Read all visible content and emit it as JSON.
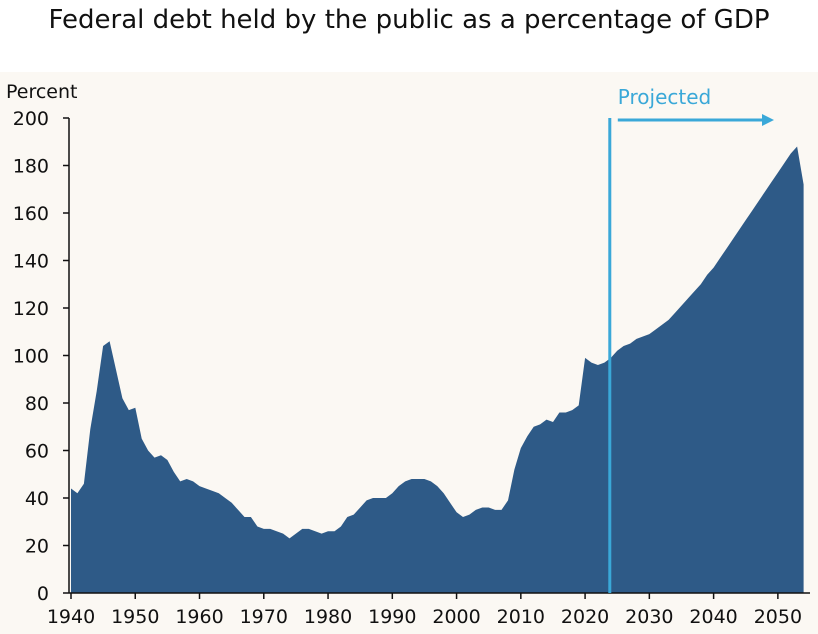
{
  "chart_data": {
    "type": "area",
    "title": "Federal debt held by the public as a percentage of GDP",
    "ylabel": "Percent",
    "xlabel": "",
    "xlim": [
      1940,
      2055
    ],
    "ylim": [
      0,
      200
    ],
    "x_ticks": [
      1940,
      1950,
      1960,
      1970,
      1980,
      1990,
      2000,
      2010,
      2020,
      2030,
      2040,
      2050
    ],
    "y_ticks": [
      0,
      20,
      40,
      60,
      80,
      100,
      120,
      140,
      160,
      180,
      200
    ],
    "grid": false,
    "fill_color": "#2e5a87",
    "annotation": {
      "label": "Projected",
      "x": 2024,
      "color": "#3aa8d8"
    },
    "series": [
      {
        "x": [
          1940,
          1941,
          1942,
          1943,
          1944,
          1945,
          1946,
          1947,
          1948,
          1949,
          1950,
          1951,
          1952,
          1953,
          1954,
          1955,
          1956,
          1957,
          1958,
          1959,
          1960,
          1961,
          1962,
          1963,
          1964,
          1965,
          1966,
          1967,
          1968,
          1969,
          1970,
          1971,
          1972,
          1973,
          1974,
          1975,
          1976,
          1977,
          1978,
          1979,
          1980,
          1981,
          1982,
          1983,
          1984,
          1985,
          1986,
          1987,
          1988,
          1989,
          1990,
          1991,
          1992,
          1993,
          1994,
          1995,
          1996,
          1997,
          1998,
          1999,
          2000,
          2001,
          2002,
          2003,
          2004,
          2005,
          2006,
          2007,
          2008,
          2009,
          2010,
          2011,
          2012,
          2013,
          2014,
          2015,
          2016,
          2017,
          2018,
          2019,
          2020,
          2021,
          2022,
          2023,
          2024,
          2025,
          2026,
          2027,
          2028,
          2029,
          2030,
          2031,
          2032,
          2033,
          2034,
          2035,
          2036,
          2037,
          2038,
          2039,
          2040,
          2041,
          2042,
          2043,
          2044,
          2045,
          2046,
          2047,
          2048,
          2049,
          2050,
          2051,
          2052,
          2053,
          2054
        ],
        "values": [
          44,
          42,
          46,
          69,
          85,
          104,
          106,
          94,
          82,
          77,
          78,
          65,
          60,
          57,
          58,
          56,
          51,
          47,
          48,
          47,
          45,
          44,
          43,
          42,
          40,
          38,
          35,
          32,
          32,
          28,
          27,
          27,
          26,
          25,
          23,
          25,
          27,
          27,
          26,
          25,
          26,
          26,
          28,
          32,
          33,
          36,
          39,
          40,
          40,
          40,
          42,
          45,
          47,
          48,
          48,
          48,
          47,
          45,
          42,
          38,
          34,
          32,
          33,
          35,
          36,
          36,
          35,
          35,
          39,
          52,
          61,
          66,
          70,
          71,
          73,
          72,
          76,
          76,
          77,
          79,
          99,
          97,
          96,
          97,
          99,
          102,
          104,
          105,
          107,
          108,
          109,
          111,
          113,
          115,
          118,
          121,
          124,
          127,
          130,
          134,
          137,
          141,
          145,
          149,
          153,
          157,
          161,
          165,
          169,
          173,
          177,
          181,
          185,
          188,
          172
        ]
      }
    ]
  }
}
